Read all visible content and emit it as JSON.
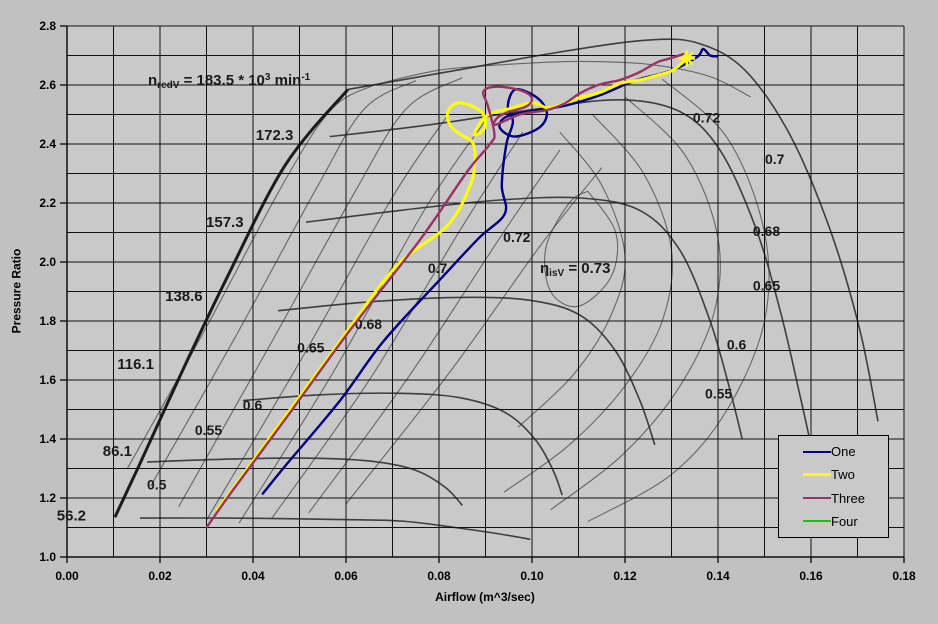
{
  "chart_data": {
    "type": "line",
    "title": "",
    "xlabel": "Airflow (m^3/sec)",
    "ylabel": "Pressure Ratio",
    "xlim": [
      0,
      0.18
    ],
    "ylim": [
      1.0,
      2.8
    ],
    "grid": {
      "x_step": 0.01,
      "y_step": 0.1,
      "on": true
    },
    "x_tick_labels": [
      "0.00",
      "0.02",
      "0.04",
      "0.06",
      "0.08",
      "0.10",
      "0.12",
      "0.14",
      "0.16",
      "0.18"
    ],
    "y_tick_labels": [
      "1.0",
      "1.2",
      "1.4",
      "1.6",
      "1.8",
      "2.0",
      "2.2",
      "2.4",
      "2.6",
      "2.8"
    ],
    "legend_position": "bottom-right",
    "series": [
      {
        "name": "One",
        "color": "#000080",
        "width": 2.4,
        "points": [
          [
            0.0421,
            1.215
          ],
          [
            0.047,
            1.31
          ],
          [
            0.0587,
            1.53
          ],
          [
            0.068,
            1.73
          ],
          [
            0.0802,
            1.94
          ],
          [
            0.0885,
            2.08
          ],
          [
            0.0942,
            2.165
          ],
          [
            0.0935,
            2.26
          ],
          [
            0.0945,
            2.4
          ],
          [
            0.0959,
            2.475
          ],
          [
            0.0948,
            2.53
          ],
          [
            0.0965,
            2.585
          ],
          [
            0.1011,
            2.557
          ],
          [
            0.1032,
            2.505
          ],
          [
            0.1015,
            2.455
          ],
          [
            0.0963,
            2.425
          ],
          [
            0.0931,
            2.455
          ],
          [
            0.0942,
            2.49
          ],
          [
            0.0985,
            2.508
          ],
          [
            0.1071,
            2.53
          ],
          [
            0.1146,
            2.565
          ],
          [
            0.1221,
            2.615
          ],
          [
            0.1301,
            2.65
          ],
          [
            0.1355,
            2.695
          ],
          [
            0.1368,
            2.722
          ],
          [
            0.1383,
            2.7
          ],
          [
            0.1398,
            2.697
          ]
        ]
      },
      {
        "name": "Two",
        "color": "#FFFF00",
        "width": 3,
        "marker_end": "star",
        "points": [
          [
            0.0323,
            1.158
          ],
          [
            0.0404,
            1.335
          ],
          [
            0.0566,
            1.685
          ],
          [
            0.0705,
            1.98
          ],
          [
            0.0819,
            2.125
          ],
          [
            0.0867,
            2.26
          ],
          [
            0.0877,
            2.34
          ],
          [
            0.0873,
            2.403
          ],
          [
            0.0849,
            2.43
          ],
          [
            0.083,
            2.452
          ],
          [
            0.0818,
            2.49
          ],
          [
            0.0825,
            2.525
          ],
          [
            0.0845,
            2.54
          ],
          [
            0.0872,
            2.528
          ],
          [
            0.0892,
            2.508
          ],
          [
            0.09,
            2.472
          ],
          [
            0.0893,
            2.443
          ],
          [
            0.0876,
            2.434
          ],
          [
            0.0903,
            2.497
          ],
          [
            0.0953,
            2.52
          ],
          [
            0.1002,
            2.54
          ],
          [
            0.1039,
            2.523
          ],
          [
            0.1103,
            2.557
          ],
          [
            0.1146,
            2.575
          ],
          [
            0.1189,
            2.605
          ],
          [
            0.1232,
            2.617
          ],
          [
            0.1269,
            2.633
          ],
          [
            0.1303,
            2.65
          ],
          [
            0.1333,
            2.69
          ]
        ]
      },
      {
        "name": "Three",
        "color": "#993366",
        "width": 2.4,
        "points": [
          [
            0.0301,
            1.102
          ],
          [
            0.0357,
            1.227
          ],
          [
            0.048,
            1.49
          ],
          [
            0.0609,
            1.77
          ],
          [
            0.0759,
            2.075
          ],
          [
            0.086,
            2.305
          ],
          [
            0.091,
            2.4
          ],
          [
            0.0919,
            2.437
          ],
          [
            0.0905,
            2.53
          ],
          [
            0.0895,
            2.575
          ],
          [
            0.0914,
            2.593
          ],
          [
            0.0953,
            2.59
          ],
          [
            0.0989,
            2.573
          ],
          [
            0.1,
            2.549
          ],
          [
            0.0985,
            2.525
          ],
          [
            0.0948,
            2.508
          ],
          [
            0.0925,
            2.488
          ],
          [
            0.0921,
            2.465
          ],
          [
            0.0974,
            2.5
          ],
          [
            0.1032,
            2.515
          ],
          [
            0.1071,
            2.538
          ],
          [
            0.1103,
            2.572
          ],
          [
            0.1146,
            2.602
          ],
          [
            0.1189,
            2.617
          ],
          [
            0.1232,
            2.644
          ],
          [
            0.1269,
            2.677
          ],
          [
            0.1297,
            2.69
          ],
          [
            0.1325,
            2.705
          ]
        ]
      },
      {
        "name": "Four",
        "color": "#00CC00",
        "width": 2.4,
        "points": []
      }
    ],
    "annotations": {
      "speed_annotation": {
        "prefix": "n",
        "sub": "redV",
        "mid": " = 183.5 * 10",
        "sup": "3",
        "unit": " min",
        "unit_sup": "-1"
      },
      "eta_annotation": {
        "prefix": "η",
        "sub": "isV",
        "suffix": " = 0.73"
      },
      "speed_labels": [
        {
          "text": "172.3",
          "x": 0.0406,
          "y": 2.43
        },
        {
          "text": "157.3",
          "x": 0.0299,
          "y": 2.135
        },
        {
          "text": "138.6",
          "x": 0.0211,
          "y": 1.885
        },
        {
          "text": "116.1",
          "x": 0.0108,
          "y": 1.655
        },
        {
          "text": "86.1",
          "x": 0.0077,
          "y": 1.36
        },
        {
          "text": "56.2",
          "x": -0.0022,
          "y": 1.14
        }
      ],
      "efficiency_labels": [
        {
          "text": "0.5",
          "x": 0.0172,
          "y": 1.245
        },
        {
          "text": "0.55",
          "x": 0.0275,
          "y": 1.43
        },
        {
          "text": "0.6",
          "x": 0.0378,
          "y": 1.515
        },
        {
          "text": "0.65",
          "x": 0.0495,
          "y": 1.71
        },
        {
          "text": "0.68",
          "x": 0.0619,
          "y": 1.79
        },
        {
          "text": "0.7",
          "x": 0.0776,
          "y": 1.98
        },
        {
          "text": "0.72",
          "x": 0.0938,
          "y": 2.085
        },
        {
          "text": "0.72",
          "x": 0.1346,
          "y": 2.49
        },
        {
          "text": "0.7",
          "x": 0.1501,
          "y": 2.35
        },
        {
          "text": "0.68",
          "x": 0.1475,
          "y": 2.105
        },
        {
          "text": "0.65",
          "x": 0.1475,
          "y": 1.92
        },
        {
          "text": "0.6",
          "x": 0.1419,
          "y": 1.72
        },
        {
          "text": "0.55",
          "x": 0.1372,
          "y": 1.555
        }
      ]
    },
    "background_map": {
      "surge_line": [
        [
          0.0103,
          1.135
        ],
        [
          0.0155,
          1.31
        ],
        [
          0.0248,
          1.63
        ],
        [
          0.0345,
          1.95
        ],
        [
          0.047,
          2.33
        ],
        [
          0.0604,
          2.585
        ]
      ],
      "speed_lines": [
        [
          [
            0.0604,
            2.585
          ],
          [
            0.082,
            2.645
          ],
          [
            0.106,
            2.712
          ],
          [
            0.1254,
            2.753
          ],
          [
            0.1361,
            2.74
          ],
          [
            0.1458,
            2.65
          ],
          [
            0.1555,
            2.43
          ],
          [
            0.1641,
            2.11
          ],
          [
            0.1705,
            1.77
          ],
          [
            0.1744,
            1.46
          ]
        ],
        [
          [
            0.0565,
            2.425
          ],
          [
            0.078,
            2.465
          ],
          [
            0.1017,
            2.52
          ],
          [
            0.1189,
            2.55
          ],
          [
            0.1318,
            2.51
          ],
          [
            0.1404,
            2.38
          ],
          [
            0.1479,
            2.125
          ],
          [
            0.1533,
            1.84
          ],
          [
            0.1576,
            1.55
          ],
          [
            0.1597,
            1.4
          ]
        ],
        [
          [
            0.0514,
            2.135
          ],
          [
            0.0716,
            2.175
          ],
          [
            0.0931,
            2.21
          ],
          [
            0.1103,
            2.217
          ],
          [
            0.1232,
            2.175
          ],
          [
            0.1318,
            2.04
          ],
          [
            0.1383,
            1.8
          ],
          [
            0.1426,
            1.565
          ],
          [
            0.1452,
            1.4
          ]
        ],
        [
          [
            0.0454,
            1.835
          ],
          [
            0.0652,
            1.865
          ],
          [
            0.0845,
            1.88
          ],
          [
            0.0996,
            1.87
          ],
          [
            0.1103,
            1.82
          ],
          [
            0.1179,
            1.7
          ],
          [
            0.1232,
            1.53
          ],
          [
            0.1264,
            1.38
          ]
        ],
        [
          [
            0.0378,
            1.53
          ],
          [
            0.0544,
            1.55
          ],
          [
            0.0716,
            1.555
          ],
          [
            0.0845,
            1.54
          ],
          [
            0.0942,
            1.49
          ],
          [
            0.1006,
            1.4
          ],
          [
            0.1045,
            1.295
          ],
          [
            0.1065,
            1.21
          ]
        ],
        [
          [
            0.0172,
            1.322
          ],
          [
            0.0351,
            1.332
          ],
          [
            0.0523,
            1.335
          ],
          [
            0.0652,
            1.325
          ],
          [
            0.0748,
            1.295
          ],
          [
            0.0813,
            1.237
          ],
          [
            0.085,
            1.175
          ]
        ],
        [
          [
            0.0157,
            1.132
          ],
          [
            0.0351,
            1.132
          ],
          [
            0.0544,
            1.128
          ],
          [
            0.0716,
            1.122
          ],
          [
            0.0834,
            1.1
          ],
          [
            0.0931,
            1.078
          ],
          [
            0.0996,
            1.06
          ]
        ]
      ],
      "efficiency_contours": [
        [
          [
            0.013,
            1.3
          ],
          [
            0.03,
            1.78
          ],
          [
            0.047,
            2.28
          ],
          [
            0.057,
            2.52
          ],
          [
            0.066,
            2.6
          ]
        ],
        [
          [
            0.018,
            1.24
          ],
          [
            0.036,
            1.74
          ],
          [
            0.054,
            2.26
          ],
          [
            0.064,
            2.52
          ],
          [
            0.075,
            2.615
          ]
        ],
        [
          [
            0.024,
            1.17
          ],
          [
            0.043,
            1.7
          ],
          [
            0.062,
            2.24
          ],
          [
            0.073,
            2.52
          ],
          [
            0.085,
            2.625
          ]
        ],
        [
          [
            0.03,
            1.125
          ],
          [
            0.05,
            1.66
          ],
          [
            0.07,
            2.22
          ],
          [
            0.082,
            2.5
          ]
        ],
        [
          [
            0.037,
            1.115
          ],
          [
            0.057,
            1.62
          ],
          [
            0.077,
            2.18
          ],
          [
            0.09,
            2.48
          ]
        ],
        [
          [
            0.044,
            1.13
          ],
          [
            0.065,
            1.6
          ],
          [
            0.085,
            2.12
          ],
          [
            0.098,
            2.44
          ]
        ],
        [
          [
            0.052,
            1.15
          ],
          [
            0.073,
            1.6
          ],
          [
            0.093,
            2.08
          ],
          [
            0.106,
            2.38
          ]
        ],
        [
          [
            0.06,
            1.18
          ],
          [
            0.082,
            1.62
          ],
          [
            0.102,
            2.06
          ],
          [
            0.115,
            2.32
          ]
        ],
        [
          [
            0.128,
            2.62
          ],
          [
            0.142,
            2.42
          ],
          [
            0.15,
            2.1
          ],
          [
            0.15,
            1.8
          ],
          [
            0.142,
            1.5
          ],
          [
            0.13,
            1.28
          ],
          [
            0.112,
            1.12
          ]
        ],
        [
          [
            0.12,
            2.56
          ],
          [
            0.133,
            2.36
          ],
          [
            0.14,
            2.08
          ],
          [
            0.139,
            1.82
          ],
          [
            0.131,
            1.56
          ],
          [
            0.119,
            1.34
          ],
          [
            0.104,
            1.16
          ]
        ],
        [
          [
            0.113,
            2.5
          ],
          [
            0.124,
            2.3
          ],
          [
            0.13,
            2.04
          ],
          [
            0.128,
            1.8
          ],
          [
            0.12,
            1.58
          ],
          [
            0.108,
            1.38
          ],
          [
            0.094,
            1.22
          ]
        ],
        [
          [
            0.106,
            2.44
          ],
          [
            0.115,
            2.26
          ],
          [
            0.12,
            2.02
          ],
          [
            0.117,
            1.82
          ],
          [
            0.109,
            1.62
          ],
          [
            0.097,
            1.44
          ]
        ],
        [
          [
            0.112,
            2.24
          ],
          [
            0.118,
            2.1
          ],
          [
            0.117,
            1.95
          ],
          [
            0.11,
            1.85
          ],
          [
            0.104,
            1.9
          ],
          [
            0.103,
            2.05
          ],
          [
            0.108,
            2.2
          ],
          [
            0.112,
            2.24
          ]
        ],
        [
          [
            0.066,
            2.6
          ],
          [
            0.08,
            2.65
          ],
          [
            0.095,
            2.67
          ],
          [
            0.11,
            2.68
          ],
          [
            0.125,
            2.67
          ],
          [
            0.138,
            2.63
          ],
          [
            0.147,
            2.56
          ]
        ]
      ]
    }
  },
  "legend": {
    "items": [
      {
        "label": "One",
        "color": "#000080",
        "weight": 2
      },
      {
        "label": "Two",
        "color": "#FFFF00",
        "weight": 3
      },
      {
        "label": "Three",
        "color": "#993366",
        "weight": 2
      },
      {
        "label": "Four",
        "color": "#00CC00",
        "weight": 2
      }
    ]
  }
}
